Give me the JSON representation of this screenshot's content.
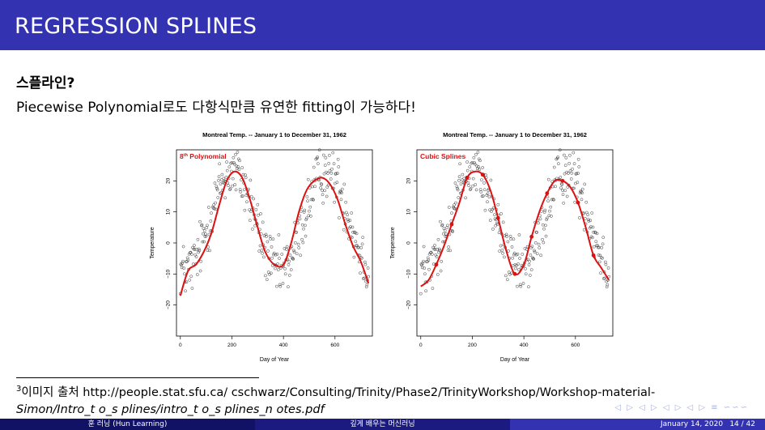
{
  "slide": {
    "title": "REGRESSION SPLINES",
    "subtitle": "스플라인?",
    "body": "Piecewise Polynomial로도 다항식만큼 유연한 fitting이 가능하다!",
    "footnote_mark": "3",
    "footnote_text": "이미지 출처 http://people.stat.sfu.ca/ cschwarz/Consulting/Trinity/Phase2/TrinityWorkshop/Workshop-material-Simon/IntrotosplinesIntrotosplinesnotes.pdf",
    "footnote_line1": "이미지 출처 http://people.stat.sfu.ca/ cschwarz/Consulting/Trinity/Phase2/TrinityWorkshop/Workshop-material-",
    "footnote_line2": "Simon/Intro_t o_s plines/intro_t o_s plines_n otes.pdf",
    "nav_symbols": "◁ ▷ ◁ ▷ ◁ ▷ ◁ ▷ ≡ ∽∽∽"
  },
  "footer": {
    "author": "훈 러닝 (Hun Learning)",
    "course": "깊게 배우는 머신러닝",
    "date": "January 14, 2020",
    "page": "14 / 42"
  },
  "colors": {
    "header_bg": "#3333b2",
    "fit_line": "#dd1111",
    "label_red": "#dd1111"
  },
  "chart_data": [
    {
      "type": "scatter",
      "title": "Montreal Temp. -- January 1 to December 31, 1962",
      "annotation": "8th Polynomial",
      "annotation_sup": "th",
      "annotation_base": "8",
      "annotation_rest": " Polynomial",
      "xlabel": "Day of Year",
      "ylabel": "Temperature",
      "xlim": [
        -15,
        745
      ],
      "ylim": [
        -30,
        30
      ],
      "xticks": [
        0,
        200,
        400,
        600
      ],
      "yticks": [
        -20,
        -10,
        0,
        10,
        20
      ],
      "fit": {
        "name": "8th Polynomial",
        "x": [
          0,
          30,
          60,
          90,
          120,
          150,
          180,
          210,
          240,
          270,
          300,
          330,
          365,
          400,
          430,
          460,
          490,
          520,
          550,
          580,
          610,
          640,
          670,
          700,
          730
        ],
        "y": [
          -17,
          -9,
          -7,
          -3,
          3,
          12,
          20,
          23,
          21,
          14,
          5,
          -3,
          -7,
          -7,
          0,
          10,
          17,
          20,
          21,
          19,
          14,
          6,
          -1,
          -6,
          -13
        ]
      }
    },
    {
      "type": "scatter",
      "title": "Montreal Temp. -- January 1 to December 31, 1962",
      "annotation": "Cubic Splines",
      "xlabel": "Day of Year",
      "ylabel": "Temperature",
      "xlim": [
        -15,
        745
      ],
      "ylim": [
        -30,
        30
      ],
      "xticks": [
        0,
        200,
        400,
        600
      ],
      "yticks": [
        -20,
        -10,
        0,
        10,
        20
      ],
      "fit": {
        "name": "Cubic Splines",
        "x": [
          0,
          30,
          60,
          90,
          120,
          150,
          180,
          210,
          240,
          270,
          300,
          330,
          365,
          400,
          430,
          460,
          490,
          520,
          550,
          580,
          610,
          640,
          670,
          700,
          730
        ],
        "y": [
          -14,
          -12,
          -7,
          -1,
          6,
          13,
          21,
          23,
          22,
          17,
          8,
          -2,
          -10,
          -7,
          2,
          10,
          16,
          20,
          20,
          18,
          13,
          5,
          -4,
          -8,
          -12
        ]
      },
      "knots": [
        {
          "x": 60,
          "y": -7
        },
        {
          "x": 120,
          "y": 6
        },
        {
          "x": 180,
          "y": 21
        },
        {
          "x": 240,
          "y": 22
        },
        {
          "x": 300,
          "y": 8
        },
        {
          "x": 365,
          "y": -10
        },
        {
          "x": 430,
          "y": 2
        },
        {
          "x": 490,
          "y": 16
        },
        {
          "x": 550,
          "y": 20
        },
        {
          "x": 610,
          "y": 13
        },
        {
          "x": 670,
          "y": -4
        }
      ]
    }
  ]
}
